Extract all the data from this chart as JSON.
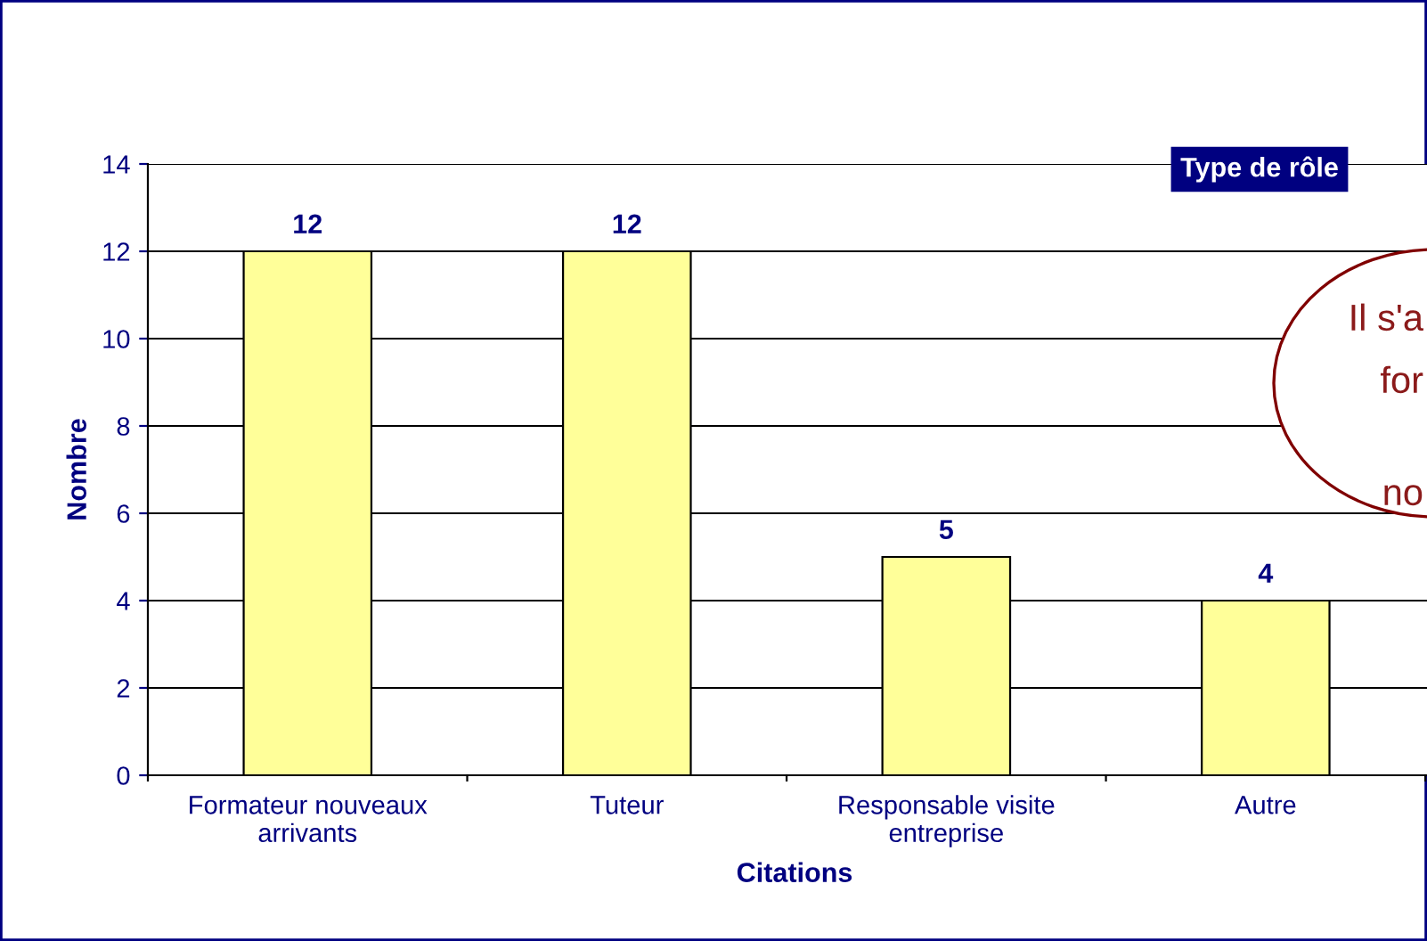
{
  "chart_data": {
    "type": "bar",
    "title": "Type de rôle",
    "xlabel": "Citations",
    "ylabel": "Nombre",
    "categories": [
      "Formateur nouveaux\narrivants",
      "Tuteur",
      "Responsable visite\nentreprise",
      "Autre"
    ],
    "values": [
      12,
      12,
      5,
      4
    ],
    "color": "#ffff99",
    "ylim": [
      0,
      14
    ],
    "yticks": [
      0,
      2,
      4,
      6,
      8,
      10,
      12,
      14
    ],
    "grid": "y",
    "data_labels": true,
    "annotations": [
      "Il s'a",
      "for",
      "no"
    ]
  }
}
